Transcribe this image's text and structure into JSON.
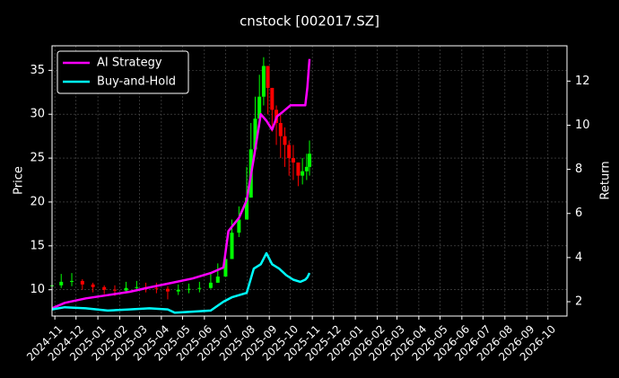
{
  "chart_data": {
    "type": "line",
    "title": "cnstock [002017.SZ]",
    "ylabel": "Price",
    "y2label": "Return",
    "ylim": [
      7.0,
      37.8
    ],
    "y2lim": [
      1.35,
      13.6
    ],
    "yticks": [
      10,
      15,
      20,
      25,
      30,
      35
    ],
    "y2ticks": [
      2,
      4,
      6,
      8,
      10,
      12
    ],
    "xlim": [
      "2024-10-28",
      "2026-10-28"
    ],
    "xticks": [
      "2024-11",
      "2024-12",
      "2025-01",
      "2025-02",
      "2025-03",
      "2025-04",
      "2025-05",
      "2025-06",
      "2025-07",
      "2025-08",
      "2025-09",
      "2025-10",
      "2025-11",
      "2025-12",
      "2026-01",
      "2026-02",
      "2026-03",
      "2026-04",
      "2026-05",
      "2026-06",
      "2026-07",
      "2026-08",
      "2026-09",
      "2026-10"
    ],
    "grid": true,
    "legend": "top-left",
    "colors": {
      "background": "#000000",
      "up": "#00ff00",
      "down": "#ff0000",
      "ai": "#ff00ff",
      "bh": "#00ffff",
      "text": "#ffffff"
    },
    "candles": {
      "x": [
        "2024-10-28",
        "2024-11-10",
        "2024-11-25",
        "2024-12-10",
        "2024-12-25",
        "2025-01-10",
        "2025-01-25",
        "2025-02-10",
        "2025-02-25",
        "2025-03-10",
        "2025-03-25",
        "2025-04-10",
        "2025-04-25",
        "2025-05-10",
        "2025-05-25",
        "2025-06-10",
        "2025-06-20",
        "2025-07-01",
        "2025-07-10",
        "2025-07-20",
        "2025-07-31",
        "2025-08-06",
        "2025-08-12",
        "2025-08-18",
        "2025-08-24",
        "2025-08-30",
        "2025-09-05",
        "2025-09-11",
        "2025-09-17",
        "2025-09-23",
        "2025-09-29",
        "2025-10-05",
        "2025-10-12",
        "2025-10-18",
        "2025-10-24",
        "2025-10-28"
      ],
      "close": [
        10.5,
        10.9,
        11.0,
        10.6,
        10.3,
        10.0,
        9.9,
        10.2,
        10.3,
        10.2,
        10.1,
        9.8,
        10.0,
        10.1,
        10.2,
        10.8,
        11.5,
        13.5,
        16.5,
        18.0,
        20.5,
        26.0,
        29.5,
        32.0,
        35.5,
        33.0,
        30.5,
        29.0,
        27.5,
        26.5,
        25.0,
        24.5,
        23.0,
        23.5,
        24.0,
        25.5
      ],
      "high": [
        11.6,
        11.8,
        11.9,
        11.2,
        10.8,
        10.5,
        10.5,
        10.9,
        11.0,
        10.8,
        10.8,
        10.4,
        10.6,
        10.7,
        10.9,
        11.8,
        13.0,
        15.0,
        18.0,
        19.5,
        24.0,
        29.0,
        32.0,
        34.5,
        36.5,
        35.0,
        33.0,
        31.0,
        30.0,
        28.5,
        27.0,
        26.5,
        24.5,
        25.0,
        25.5,
        27.0
      ],
      "low": [
        9.6,
        10.2,
        10.4,
        10.0,
        9.7,
        9.5,
        9.3,
        9.6,
        9.8,
        9.7,
        9.6,
        8.9,
        9.4,
        9.6,
        9.7,
        10.1,
        10.8,
        11.8,
        13.8,
        16.0,
        18.5,
        22.0,
        26.0,
        28.5,
        31.0,
        30.0,
        28.0,
        26.5,
        25.0,
        24.0,
        23.0,
        22.5,
        21.8,
        22.0,
        22.5,
        23.0
      ]
    },
    "series": [
      {
        "name": "AI Strategy",
        "x": [
          "2024-10-28",
          "2024-11-15",
          "2024-12-15",
          "2025-01-15",
          "2025-02-15",
          "2025-03-15",
          "2025-04-15",
          "2025-05-15",
          "2025-06-10",
          "2025-06-28",
          "2025-07-05",
          "2025-07-20",
          "2025-07-31",
          "2025-08-10",
          "2025-08-20",
          "2025-08-28",
          "2025-09-05",
          "2025-09-12",
          "2025-09-20",
          "2025-10-01",
          "2025-10-15",
          "2025-10-22",
          "2025-10-25",
          "2025-10-28"
        ],
        "values": [
          1.7,
          1.95,
          2.15,
          2.3,
          2.45,
          2.65,
          2.85,
          3.05,
          3.3,
          3.55,
          5.2,
          5.8,
          6.6,
          8.5,
          10.5,
          10.2,
          9.8,
          10.4,
          10.6,
          10.9,
          10.9,
          10.9,
          11.7,
          13.0
        ]
      },
      {
        "name": "Buy-and-Hold",
        "x": [
          "2024-10-28",
          "2024-11-15",
          "2024-12-15",
          "2025-01-15",
          "2025-02-15",
          "2025-03-15",
          "2025-04-10",
          "2025-04-20",
          "2025-05-15",
          "2025-06-10",
          "2025-06-28",
          "2025-07-10",
          "2025-07-31",
          "2025-08-10",
          "2025-08-20",
          "2025-08-28",
          "2025-09-05",
          "2025-09-15",
          "2025-09-25",
          "2025-10-05",
          "2025-10-15",
          "2025-10-22",
          "2025-10-25",
          "2025-10-28"
        ],
        "values": [
          1.65,
          1.75,
          1.7,
          1.6,
          1.65,
          1.7,
          1.65,
          1.5,
          1.55,
          1.6,
          2.0,
          2.2,
          2.4,
          3.5,
          3.7,
          4.2,
          3.7,
          3.5,
          3.2,
          3.0,
          2.9,
          3.0,
          3.1,
          3.3
        ]
      }
    ]
  }
}
